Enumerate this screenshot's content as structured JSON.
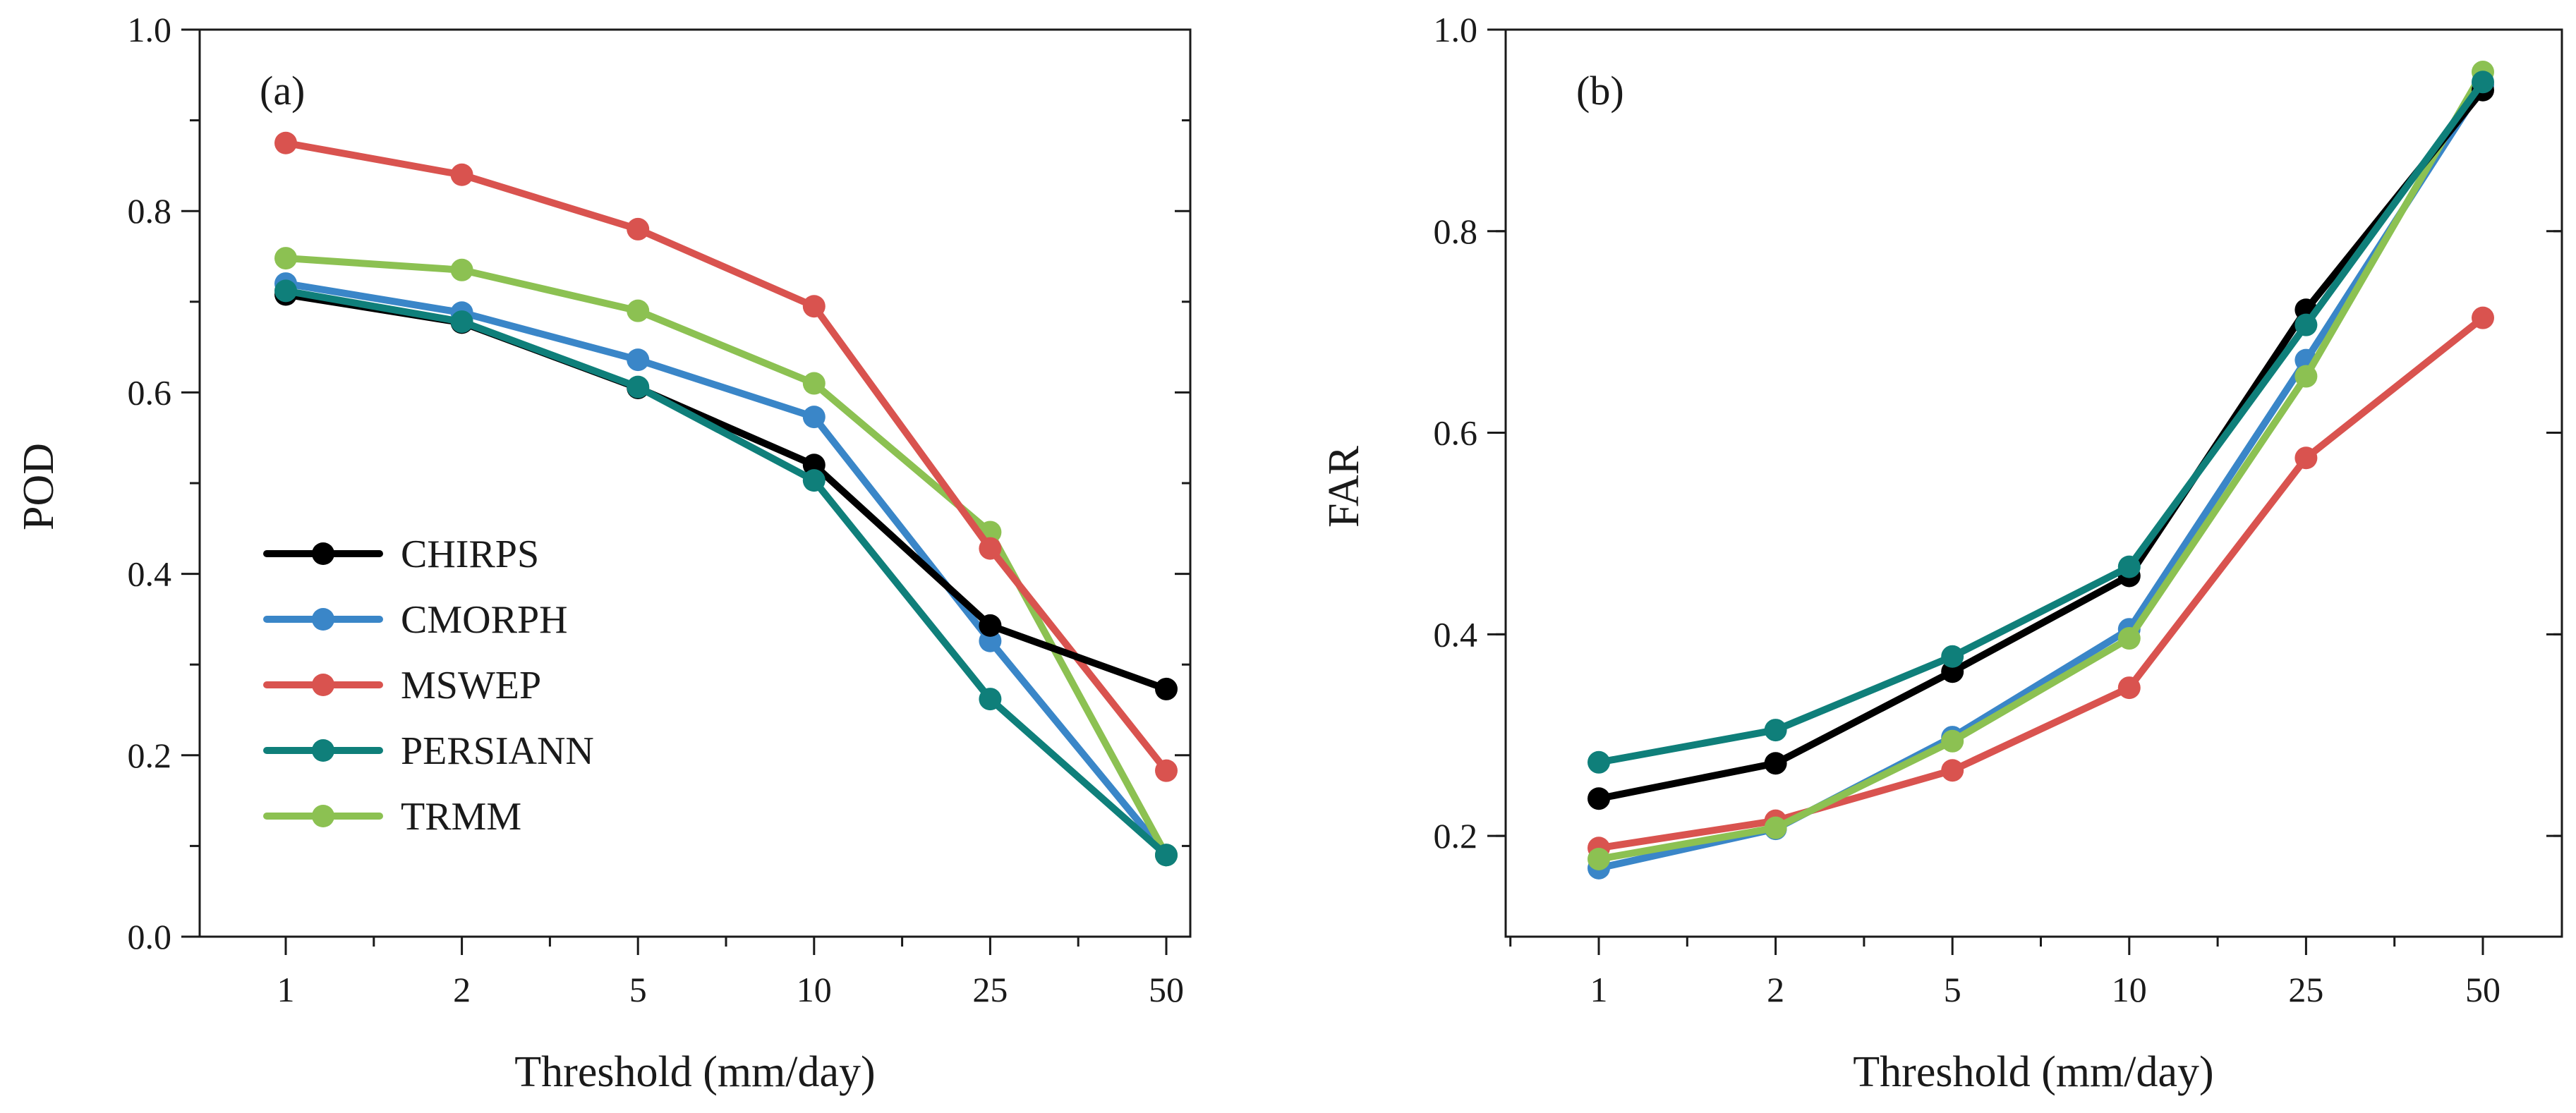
{
  "chart_data": [
    {
      "type": "line",
      "panel_label": "(a)",
      "xlabel": "Threshold (mm/day)",
      "ylabel": "POD",
      "categories": [
        "1",
        "2",
        "5",
        "10",
        "25",
        "50"
      ],
      "ylim": [
        0.0,
        1.0
      ],
      "yticks": [
        "0.0",
        "0.2",
        "0.4",
        "0.6",
        "0.8",
        "1.0"
      ],
      "legend_position": "lower-left",
      "series": [
        {
          "name": "CHIRPS",
          "color": "#000000",
          "values": [
            0.708,
            0.677,
            0.605,
            0.52,
            0.343,
            0.273
          ]
        },
        {
          "name": "CMORPH",
          "color": "#3a86c8",
          "values": [
            0.72,
            0.688,
            0.636,
            0.573,
            0.326,
            0.09
          ]
        },
        {
          "name": "MSWEP",
          "color": "#d9534f",
          "values": [
            0.875,
            0.84,
            0.78,
            0.695,
            0.428,
            0.183
          ]
        },
        {
          "name": "PERSIANN",
          "color": "#0f7f7a",
          "values": [
            0.712,
            0.678,
            0.606,
            0.503,
            0.262,
            0.09
          ]
        },
        {
          "name": "TRMM",
          "color": "#8cc152",
          "values": [
            0.748,
            0.735,
            0.69,
            0.61,
            0.446,
            0.09
          ]
        }
      ]
    },
    {
      "type": "line",
      "panel_label": "(b)",
      "xlabel": "Threshold (mm/day)",
      "ylabel": "FAR",
      "categories": [
        "1",
        "2",
        "5",
        "10",
        "25",
        "50"
      ],
      "ylim": [
        0.1,
        1.0
      ],
      "yticks": [
        "0.2",
        "0.4",
        "0.6",
        "0.8",
        "1.0"
      ],
      "series": [
        {
          "name": "CHIRPS",
          "color": "#000000",
          "values": [
            0.237,
            0.272,
            0.363,
            0.458,
            0.722,
            0.94
          ]
        },
        {
          "name": "CMORPH",
          "color": "#3a86c8",
          "values": [
            0.168,
            0.207,
            0.298,
            0.405,
            0.672,
            0.945
          ]
        },
        {
          "name": "MSWEP",
          "color": "#d9534f",
          "values": [
            0.188,
            0.215,
            0.265,
            0.347,
            0.575,
            0.714
          ]
        },
        {
          "name": "PERSIANN",
          "color": "#0f7f7a",
          "values": [
            0.273,
            0.305,
            0.378,
            0.467,
            0.707,
            0.948
          ]
        },
        {
          "name": "TRMM",
          "color": "#8cc152",
          "values": [
            0.177,
            0.208,
            0.294,
            0.396,
            0.656,
            0.958
          ]
        }
      ]
    }
  ]
}
